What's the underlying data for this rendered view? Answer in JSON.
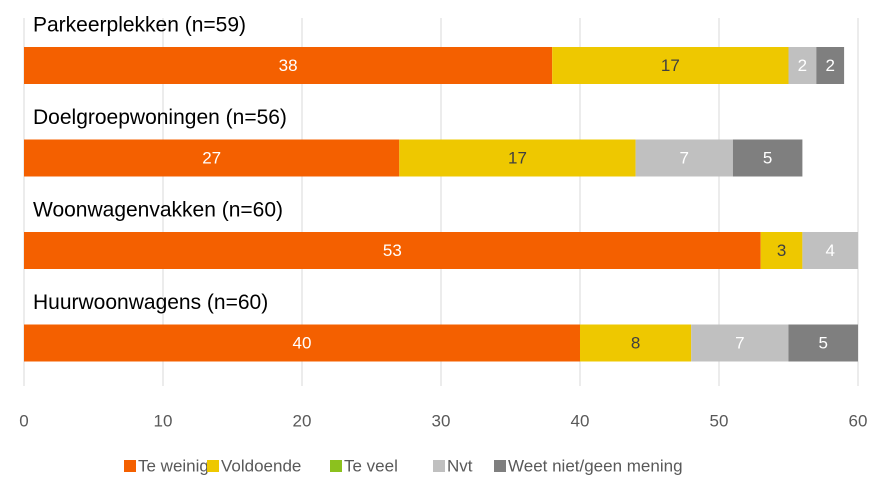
{
  "chart_data": {
    "type": "stacked_barh",
    "categories": [
      "Parkeerplekken (n=59)",
      "Doelgroepwoningen (n=56)",
      "Woonwagenvakken (n=60)",
      "Huurwoonwagens (n=60)"
    ],
    "series": [
      {
        "name": "Te weinig",
        "color": "#f46000",
        "label_color": "#ffffff",
        "values": [
          38,
          27,
          53,
          40
        ]
      },
      {
        "name": "Voldoende",
        "color": "#eec800",
        "label_color": "#404040",
        "values": [
          17,
          17,
          3,
          8
        ]
      },
      {
        "name": "Te veel",
        "color": "#8cc11e",
        "label_color": "#ffffff",
        "values": [
          0,
          0,
          0,
          0
        ]
      },
      {
        "name": "Nvt",
        "color": "#c0c0c0",
        "label_color": "#ffffff",
        "values": [
          2,
          7,
          4,
          7
        ]
      },
      {
        "name": "Weet niet/geen mening",
        "color": "#7f7f7f",
        "label_color": "#ffffff",
        "values": [
          2,
          5,
          0,
          5
        ]
      }
    ],
    "xlim": [
      0,
      60
    ],
    "xticks": [
      0,
      10,
      20,
      30,
      40,
      50,
      60
    ],
    "grid": true,
    "legend": "bottom"
  }
}
